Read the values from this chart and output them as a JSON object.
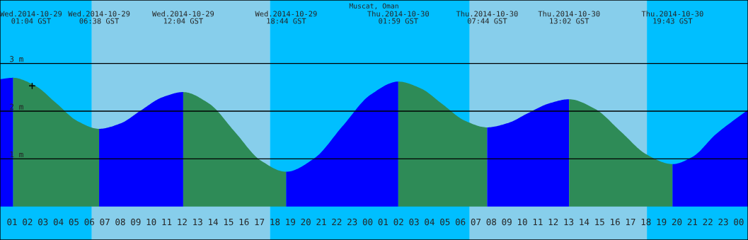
{
  "chart_data": {
    "type": "area",
    "title": "Muscat, Oman",
    "series": [
      {
        "color": "#0000ff",
        "x": [
          0.22,
          1.07
        ],
        "values": [
          2.67,
          2.7
        ]
      },
      {
        "color": "#2e8b57",
        "x": [
          1.07,
          2.46,
          3.85,
          5.24,
          6.63
        ],
        "values": [
          2.7,
          2.54,
          2.17,
          1.79,
          1.63
        ]
      },
      {
        "color": "#0000ff",
        "x": [
          6.63,
          7.99,
          9.35,
          10.71,
          12.07
        ],
        "values": [
          1.63,
          1.74,
          2.02,
          2.29,
          2.4
        ]
      },
      {
        "color": "#2e8b57",
        "x": [
          12.07,
          13.74,
          15.4,
          17.07,
          18.73
        ],
        "values": [
          2.4,
          2.16,
          1.57,
          0.97,
          0.73
        ]
      },
      {
        "color": "#0000ff",
        "x": [
          18.73,
          20.54,
          22.36,
          24.17,
          25.98
        ],
        "values": [
          0.73,
          1.01,
          1.68,
          2.34,
          2.62
        ]
      },
      {
        "color": "#2e8b57",
        "x": [
          25.98,
          27.42,
          28.86,
          30.29,
          31.73
        ],
        "values": [
          2.62,
          2.48,
          2.14,
          1.8,
          1.66
        ]
      },
      {
        "color": "#0000ff",
        "x": [
          31.73,
          33.06,
          34.38,
          35.71,
          37.03
        ],
        "values": [
          1.66,
          1.75,
          1.96,
          2.16,
          2.25
        ]
      },
      {
        "color": "#2e8b57",
        "x": [
          37.03,
          38.7,
          40.38,
          42.05,
          43.72
        ],
        "values": [
          2.25,
          2.05,
          1.57,
          1.09,
          0.89
        ]
      },
      {
        "color": "#0000ff",
        "x": [
          43.72,
          45.0,
          46.5,
          48.6
        ],
        "values": [
          0.89,
          1.04,
          1.51,
          2.03
        ]
      },
      {
        "type": "scatter",
        "marker": "cross",
        "color": "#000000",
        "x": [
          2.3
        ],
        "values": [
          2.53
        ]
      }
    ],
    "bands": [
      {
        "axis": "x",
        "from": 0.22,
        "to": 6.16,
        "color": "#00bfff"
      },
      {
        "axis": "x",
        "from": 6.16,
        "to": 17.68,
        "color": "#87ceeb"
      },
      {
        "axis": "x",
        "from": 17.68,
        "to": 30.6,
        "color": "#00bfff"
      },
      {
        "axis": "x",
        "from": 30.6,
        "to": 42.06,
        "color": "#87ceeb"
      },
      {
        "axis": "x",
        "from": 42.06,
        "to": 48.6,
        "color": "#00bfff"
      }
    ],
    "annotations": [
      "Wed.2014-10-29\n01:04 GST",
      "Wed.2014-10-29\n06:38 GST",
      "Wed.2014-10-29\n12:04 GST",
      "Wed.2014-10-29\n18:44 GST",
      "Thu.2014-10-30\n01:59 GST",
      "Thu.2014-10-30\n07:44 GST",
      "Thu.2014-10-30\n13:02 GST",
      "Thu.2014-10-30\n19:43 GST"
    ],
    "xlim": [
      0.22,
      48.6
    ],
    "ylim": [
      -0.7,
      4.33
    ],
    "xticks": [
      {
        "value": 1,
        "label": "01"
      },
      {
        "value": 2,
        "label": "02"
      },
      {
        "value": 3,
        "label": "03"
      },
      {
        "value": 4,
        "label": "04"
      },
      {
        "value": 5,
        "label": "05"
      },
      {
        "value": 6,
        "label": "06"
      },
      {
        "value": 7,
        "label": "07"
      },
      {
        "value": 8,
        "label": "08"
      },
      {
        "value": 9,
        "label": "09"
      },
      {
        "value": 10,
        "label": "10"
      },
      {
        "value": 11,
        "label": "11"
      },
      {
        "value": 12,
        "label": "12"
      },
      {
        "value": 13,
        "label": "13"
      },
      {
        "value": 14,
        "label": "14"
      },
      {
        "value": 15,
        "label": "15"
      },
      {
        "value": 16,
        "label": "16"
      },
      {
        "value": 17,
        "label": "17"
      },
      {
        "value": 18,
        "label": "18"
      },
      {
        "value": 19,
        "label": "19"
      },
      {
        "value": 20,
        "label": "20"
      },
      {
        "value": 21,
        "label": "21"
      },
      {
        "value": 22,
        "label": "22"
      },
      {
        "value": 23,
        "label": "23"
      },
      {
        "value": 24,
        "label": "00"
      },
      {
        "value": 25,
        "label": "01"
      },
      {
        "value": 26,
        "label": "02"
      },
      {
        "value": 27,
        "label": "03"
      },
      {
        "value": 28,
        "label": "04"
      },
      {
        "value": 29,
        "label": "05"
      },
      {
        "value": 30,
        "label": "06"
      },
      {
        "value": 31,
        "label": "07"
      },
      {
        "value": 32,
        "label": "08"
      },
      {
        "value": 33,
        "label": "09"
      },
      {
        "value": 34,
        "label": "10"
      },
      {
        "value": 35,
        "label": "11"
      },
      {
        "value": 36,
        "label": "12"
      },
      {
        "value": 37,
        "label": "13"
      },
      {
        "value": 38,
        "label": "14"
      },
      {
        "value": 39,
        "label": "15"
      },
      {
        "value": 40,
        "label": "16"
      },
      {
        "value": 41,
        "label": "17"
      },
      {
        "value": 42,
        "label": "18"
      },
      {
        "value": 43,
        "label": "19"
      },
      {
        "value": 44,
        "label": "20"
      },
      {
        "value": 45,
        "label": "21"
      },
      {
        "value": 46,
        "label": "22"
      },
      {
        "value": 47,
        "label": "23"
      },
      {
        "value": 48,
        "label": "00"
      }
    ],
    "yticks": [
      {
        "value": 1,
        "label": "1 m"
      },
      {
        "value": 2,
        "label": "2 m"
      },
      {
        "value": 3,
        "label": "3 m"
      }
    ],
    "grid": "y"
  }
}
